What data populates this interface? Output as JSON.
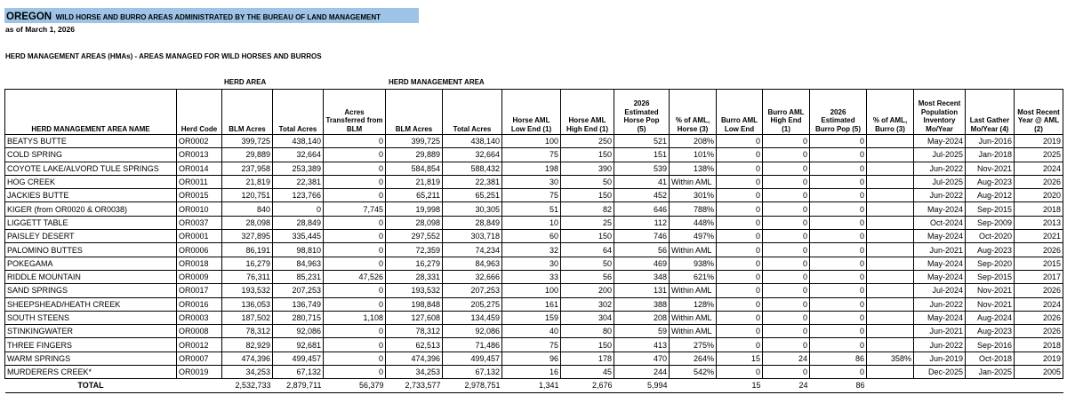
{
  "header": {
    "title_state": "OREGON",
    "title_rest": "WILD HORSE AND BURRO AREAS ADMINISTRATED BY THE BUREAU OF LAND MANAGEMENT",
    "as_of": "as of March 1, 2026",
    "section": "HERD MANAGEMENT AREAS (HMAs) - AREAS MANAGED FOR WILD HORSES AND BURROS",
    "group_herd_area": "HERD AREA",
    "group_hma": "HERD MANAGEMENT AREA"
  },
  "table": {
    "columns": [
      [
        "HERD MANAGEMENT AREA NAME"
      ],
      [
        "Herd Code"
      ],
      [
        "BLM Acres"
      ],
      [
        "Total Acres"
      ],
      [
        "Acres",
        "Transferred from",
        "BLM"
      ],
      [
        "BLM Acres"
      ],
      [
        "Total Acres"
      ],
      [
        "Horse AML",
        "Low End (1)"
      ],
      [
        "Horse AML",
        "High End (1)"
      ],
      [
        "2026",
        "Estimated",
        "Horse Pop",
        "(5)"
      ],
      [
        "% of AML,",
        "Horse (3)"
      ],
      [
        "Burro AML",
        "Low End"
      ],
      [
        "Burro AML",
        "High End",
        "(1)"
      ],
      [
        "2026",
        "Estimated",
        "Burro Pop (5)"
      ],
      [
        "% of AML,",
        "Burro (3)"
      ],
      [
        "Most Recent",
        "Population",
        "Inventory",
        "Mo/Year"
      ],
      [
        "Last Gather",
        "Mo/Year (4)"
      ],
      [
        "Most Recent",
        "Year @ AML",
        "(2)"
      ]
    ],
    "rows": [
      [
        "BEATYS BUTTE",
        "OR0002",
        "399,725",
        "438,140",
        "0",
        "399,725",
        "438,140",
        "100",
        "250",
        "521",
        "208%",
        "0",
        "0",
        "0",
        null,
        "May-2024",
        "Jun-2016",
        "2019"
      ],
      [
        "COLD SPRING",
        "OR0013",
        "29,889",
        "32,664",
        "0",
        "29,889",
        "32,664",
        "75",
        "150",
        "151",
        "101%",
        "0",
        "0",
        "0",
        null,
        "Jul-2025",
        "Jan-2018",
        "2025"
      ],
      [
        "COYOTE LAKE/ALVORD TULE SPRINGS",
        "OR0014",
        "237,958",
        "253,389",
        "0",
        "584,854",
        "588,432",
        "198",
        "390",
        "539",
        "138%",
        "0",
        "0",
        "0",
        null,
        "Jun-2022",
        "Nov-2021",
        "2024"
      ],
      [
        "HOG CREEK",
        "OR0011",
        "21,819",
        "22,381",
        "0",
        "21,819",
        "22,381",
        "30",
        "50",
        "41",
        "Within AML",
        "0",
        "0",
        "0",
        null,
        "Jul-2025",
        "Aug-2023",
        "2026"
      ],
      [
        "JACKIES BUTTE",
        "OR0015",
        "120,751",
        "123,766",
        "0",
        "65,211",
        "65,251",
        "75",
        "150",
        "452",
        "301%",
        "0",
        "0",
        "0",
        null,
        "Jun-2022",
        "Aug-2012",
        "2020"
      ],
      [
        "KIGER (from OR0020 & OR0038)",
        "OR0010",
        "840",
        "0",
        "7,745",
        "19,998",
        "30,305",
        "51",
        "82",
        "646",
        "788%",
        "0",
        "0",
        "0",
        null,
        "May-2024",
        "Sep-2015",
        "2018"
      ],
      [
        "LIGGETT TABLE",
        "OR0037",
        "28,098",
        "28,849",
        "0",
        "28,098",
        "28,849",
        "10",
        "25",
        "112",
        "448%",
        "0",
        "0",
        "0",
        null,
        "Oct-2024",
        "Sep-2009",
        "2013"
      ],
      [
        "PAISLEY DESERT",
        "OR0001",
        "327,895",
        "335,445",
        "0",
        "297,552",
        "303,718",
        "60",
        "150",
        "746",
        "497%",
        "0",
        "0",
        "0",
        null,
        "May-2024",
        "Oct-2020",
        "2021"
      ],
      [
        "PALOMINO BUTTES",
        "OR0006",
        "86,191",
        "98,810",
        "0",
        "72,359",
        "74,234",
        "32",
        "64",
        "56",
        "Within AML",
        "0",
        "0",
        "0",
        null,
        "Jun-2021",
        "Aug-2023",
        "2026"
      ],
      [
        "POKEGAMA",
        "OR0018",
        "16,279",
        "84,963",
        "0",
        "16,279",
        "84,963",
        "30",
        "50",
        "469",
        "938%",
        "0",
        "0",
        "0",
        null,
        "May-2024",
        "Sep-2020",
        "2015"
      ],
      [
        "RIDDLE MOUNTAIN",
        "OR0009",
        "76,311",
        "85,231",
        "47,526",
        "28,331",
        "32,666",
        "33",
        "56",
        "348",
        "621%",
        "0",
        "0",
        "0",
        null,
        "May-2024",
        "Sep-2015",
        "2017"
      ],
      [
        "SAND SPRINGS",
        "OR0017",
        "193,532",
        "207,253",
        "0",
        "193,532",
        "207,253",
        "100",
        "200",
        "131",
        "Within AML",
        "0",
        "0",
        "0",
        null,
        "Jul-2024",
        "Nov-2021",
        "2026"
      ],
      [
        "SHEEPSHEAD/HEATH CREEK",
        "OR0016",
        "136,053",
        "136,749",
        "0",
        "198,848",
        "205,275",
        "161",
        "302",
        "388",
        "128%",
        "0",
        "0",
        "0",
        null,
        "Jun-2022",
        "Nov-2021",
        "2024"
      ],
      [
        "SOUTH STEENS",
        "OR0003",
        "187,502",
        "280,715",
        "1,108",
        "127,608",
        "134,459",
        "159",
        "304",
        "208",
        "Within AML",
        "0",
        "0",
        "0",
        null,
        "May-2024",
        "Aug-2024",
        "2026"
      ],
      [
        "STINKINGWATER",
        "OR0008",
        "78,312",
        "92,086",
        "0",
        "78,312",
        "92,086",
        "40",
        "80",
        "59",
        "Within AML",
        "0",
        "0",
        "0",
        null,
        "Jun-2021",
        "Aug-2023",
        "2026"
      ],
      [
        "THREE FINGERS",
        "OR0012",
        "82,929",
        "92,681",
        "0",
        "62,513",
        "71,486",
        "75",
        "150",
        "413",
        "275%",
        "0",
        "0",
        "0",
        null,
        "Jun-2022",
        "Sep-2016",
        "2018"
      ],
      [
        "WARM SPRINGS",
        "OR0007",
        "474,396",
        "499,457",
        "0",
        "474,396",
        "499,457",
        "96",
        "178",
        "470",
        "264%",
        "15",
        "24",
        "86",
        "358%",
        "Jun-2019",
        "Oct-2018",
        "2019"
      ],
      [
        "MURDERERS CREEK*",
        "OR0019",
        "34,253",
        "67,132",
        "0",
        "34,253",
        "67,132",
        "16",
        "45",
        "244",
        "542%",
        "0",
        "0",
        "0",
        null,
        "Dec-2025",
        "Jan-2025",
        "2005"
      ]
    ],
    "total": [
      "TOTAL",
      null,
      "2,532,733",
      "2,879,711",
      "56,379",
      "2,733,577",
      "2,978,751",
      "1,341",
      "2,676",
      "5,994",
      null,
      "15",
      "24",
      "86",
      null,
      null,
      null,
      null
    ]
  }
}
